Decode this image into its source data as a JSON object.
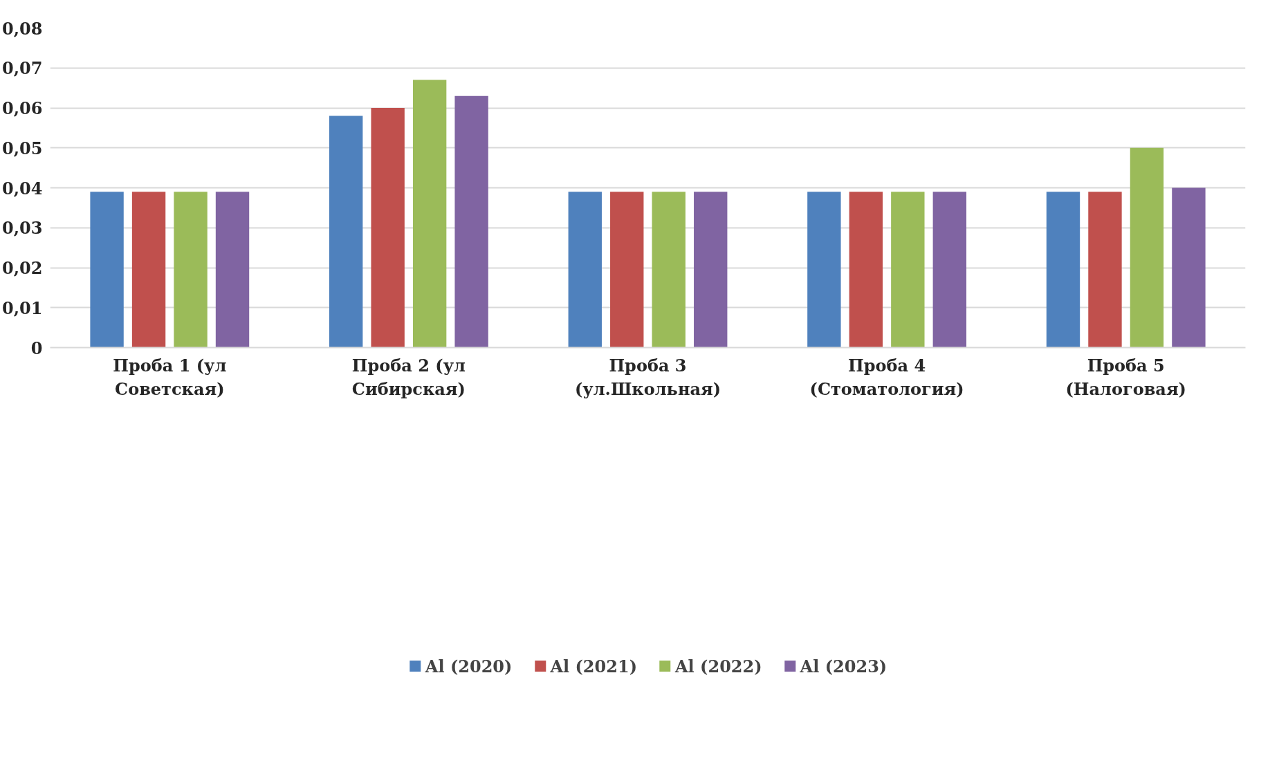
{
  "chart_data": {
    "type": "bar",
    "categories": [
      "Проба 1 (ул Советская)",
      "Проба 2 (ул Сибирская)",
      "Проба 3 (ул.Школьная)",
      "Проба 4 (Стоматология)",
      "Проба 5 (Налоговая)"
    ],
    "series": [
      {
        "name": "Al (2020)",
        "color": "#4f81bd",
        "values": [
          0.039,
          0.058,
          0.039,
          0.039,
          0.039
        ]
      },
      {
        "name": "Al (2021)",
        "color": "#c0504d",
        "values": [
          0.039,
          0.06,
          0.039,
          0.039,
          0.039
        ]
      },
      {
        "name": "Al (2022)",
        "color": "#9bbb59",
        "values": [
          0.039,
          0.067,
          0.039,
          0.039,
          0.05
        ]
      },
      {
        "name": "Al (2023)",
        "color": "#8064a2",
        "values": [
          0.039,
          0.063,
          0.039,
          0.039,
          0.04
        ]
      }
    ],
    "ylim": [
      0,
      0.08
    ],
    "yticks": [
      {
        "value": 0,
        "label": "0"
      },
      {
        "value": 0.01,
        "label": "0,01"
      },
      {
        "value": 0.02,
        "label": "0,02"
      },
      {
        "value": 0.03,
        "label": "0,03"
      },
      {
        "value": 0.04,
        "label": "0,04"
      },
      {
        "value": 0.05,
        "label": "0,05"
      },
      {
        "value": 0.06,
        "label": "0,06"
      },
      {
        "value": 0.07,
        "label": "0,07"
      },
      {
        "value": 0.08,
        "label": "0,08"
      }
    ],
    "grid": "y",
    "legend": "bottom"
  }
}
